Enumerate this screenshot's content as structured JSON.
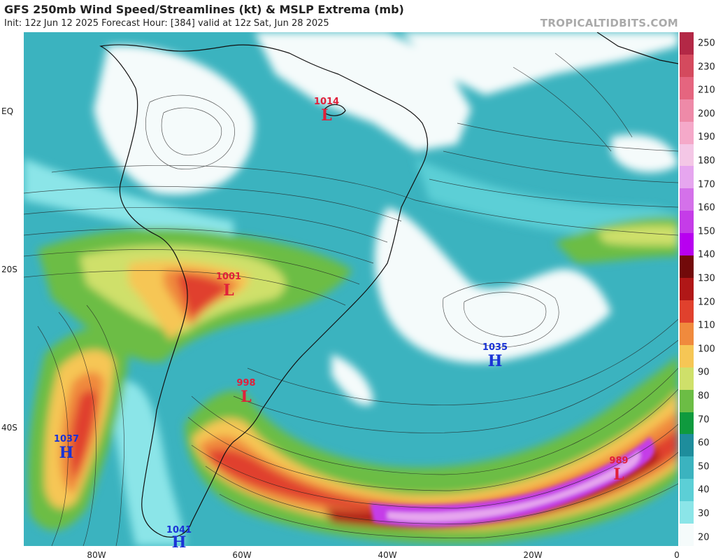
{
  "title": "GFS 250mb Wind Speed/Streamlines (kt) & MSLP Extrema (mb)",
  "subtitle": "Init: 12z Jun 12 2025   Forecast Hour: [384]   valid at 12z Sat, Jun 28 2025",
  "source": "TROPICALTIDBITS.COM",
  "lat_labels": [
    "EQ",
    "20S",
    "40S"
  ],
  "lon_labels": [
    "80W",
    "60W",
    "40W",
    "20W",
    "0"
  ],
  "colorbar": {
    "labels": [
      "250",
      "230",
      "210",
      "200",
      "190",
      "180",
      "170",
      "160",
      "150",
      "140",
      "130",
      "120",
      "110",
      "100",
      "90",
      "80",
      "70",
      "60",
      "50",
      "40",
      "30",
      "20"
    ],
    "colors": {
      "c20": "#f5fbfb",
      "c30": "#8be5e8",
      "c40": "#5ccfd6",
      "c50": "#3bb3bf",
      "c60": "#1e8d9c",
      "c70": "#0f9a3e",
      "c80": "#6cbd45",
      "c90": "#cfe06a",
      "c100": "#f6c655",
      "c110": "#f08a3d",
      "c120": "#e0412d",
      "c130": "#b01717",
      "c140": "#720a0a",
      "p140": "#b800f0",
      "p150": "#c53ce8",
      "p160": "#d471ea",
      "p170": "#e6a6ef",
      "p180": "#f4c7e6",
      "p190": "#f5a9c9",
      "p200": "#ee8aa8",
      "p210": "#e5657f",
      "p230": "#d44a5e",
      "p250": "#b32846"
    }
  },
  "pressure_systems": [
    {
      "type": "L",
      "value": "1014",
      "color": "#e0203a"
    },
    {
      "type": "L",
      "value": "1001",
      "color": "#e0203a"
    },
    {
      "type": "L",
      "value": "998",
      "color": "#e0203a"
    },
    {
      "type": "H",
      "value": "1035",
      "color": "#1a33d6"
    },
    {
      "type": "H",
      "value": "1037",
      "color": "#1a33d6"
    },
    {
      "type": "H",
      "value": "1041",
      "color": "#1a33d6"
    },
    {
      "type": "L",
      "value": "989",
      "color": "#e0203a"
    }
  ]
}
